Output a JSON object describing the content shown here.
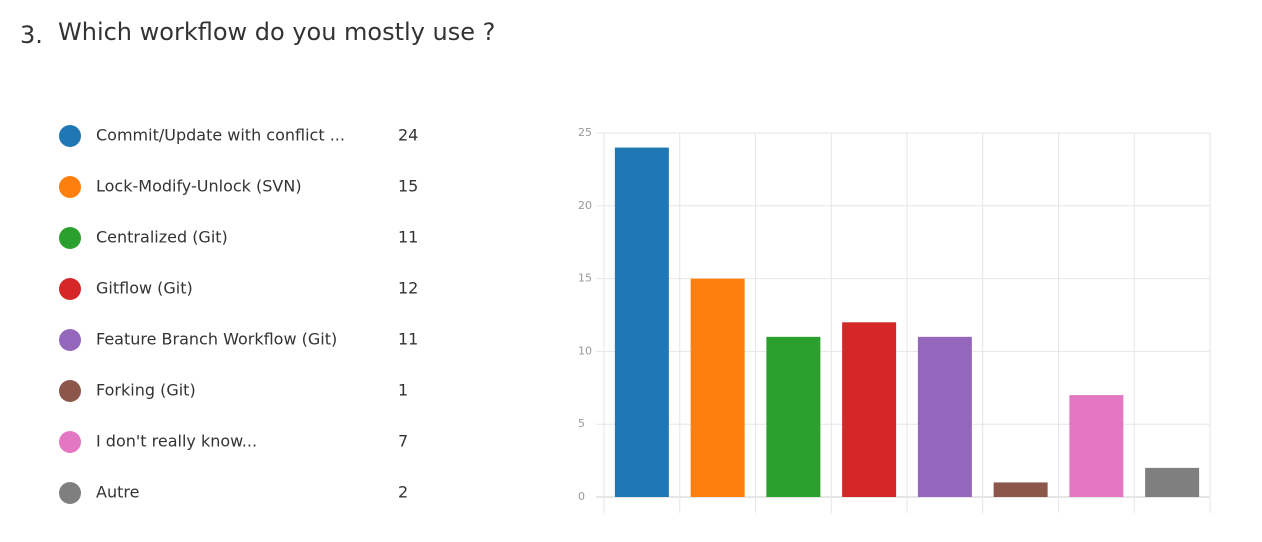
{
  "chart_data": {
    "type": "bar",
    "question_number": "3.",
    "title": "Which workflow do you mostly use ?",
    "categories": [
      "Commit/Update with conflict ...",
      "Lock-Modify-Unlock (SVN)",
      "Centralized (Git)",
      "Gitflow (Git)",
      "Feature Branch Workflow (Git)",
      "Forking (Git)",
      "I don't really know...",
      "Autre"
    ],
    "values": [
      24,
      15,
      11,
      12,
      11,
      1,
      7,
      2
    ],
    "colors": [
      "#1f77b4",
      "#ff7f0e",
      "#2ca02c",
      "#d62728",
      "#9467bd",
      "#8c564b",
      "#e377c2",
      "#7f7f7f"
    ],
    "ylim": [
      0,
      25
    ],
    "yticks": [
      0,
      5,
      10,
      15,
      20,
      25
    ],
    "grid": true
  }
}
